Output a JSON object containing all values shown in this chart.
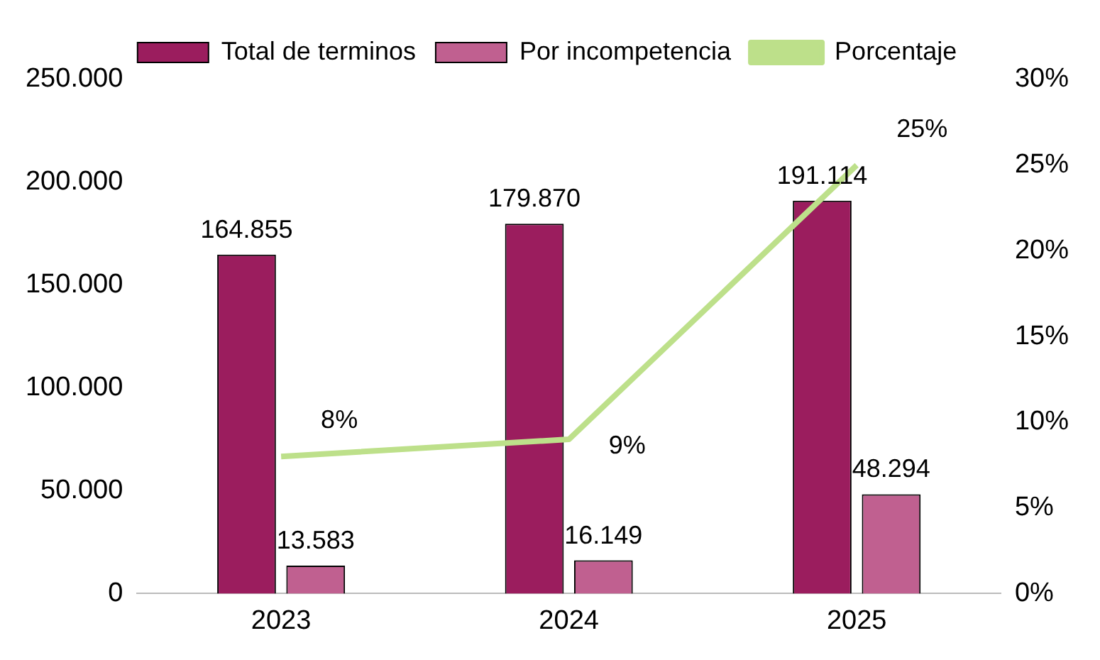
{
  "chart_data": {
    "type": "bar",
    "categories": [
      "2023",
      "2024",
      "2025"
    ],
    "series": [
      {
        "name": "Total de terminos",
        "color": "#9b1d5e",
        "values": [
          164855,
          179870,
          191114
        ],
        "value_labels": [
          "164.855",
          "179.870",
          "191.114"
        ]
      },
      {
        "name": "Por incompetencia",
        "color": "#c06090",
        "values": [
          13583,
          16149,
          48294
        ],
        "value_labels": [
          "13.583",
          "16.149",
          "48.294"
        ]
      },
      {
        "name": "Porcentaje",
        "type": "line",
        "axis": "y2",
        "color": "#bde08a",
        "values": [
          8,
          9,
          25
        ],
        "value_labels": [
          "8%",
          "9%",
          "25%"
        ]
      }
    ],
    "ylim": [
      0,
      250000
    ],
    "yticks": [
      0,
      {
        "value": 50000,
        "label": "50.000"
      },
      {
        "value": 100000,
        "label": "100.000"
      },
      {
        "value": 150000,
        "label": "150.000"
      },
      {
        "value": 200000,
        "label": "200.000"
      },
      {
        "value": 250000,
        "label": "250.000"
      }
    ],
    "y2lim": [
      0,
      30
    ],
    "y2ticks": [
      {
        "value": 0,
        "label": "0%"
      },
      {
        "value": 5,
        "label": "5%"
      },
      {
        "value": 10,
        "label": "10%"
      },
      {
        "value": 15,
        "label": "15%"
      },
      {
        "value": 20,
        "label": "20%"
      },
      {
        "value": 25,
        "label": "25%"
      },
      {
        "value": 30,
        "label": "30%"
      }
    ],
    "legend": "top",
    "grid": false,
    "marker": "none"
  }
}
